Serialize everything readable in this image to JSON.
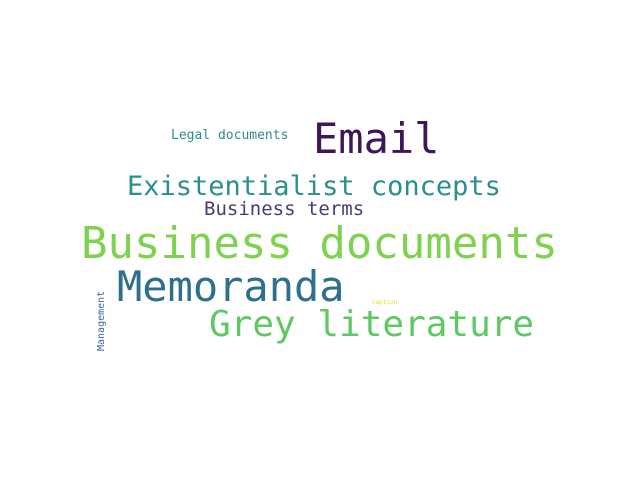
{
  "words": [
    {
      "key": "legal",
      "text": "Legal documents",
      "color": "#2f8c8a"
    },
    {
      "key": "email",
      "text": "Email",
      "color": "#3f155a"
    },
    {
      "key": "exist",
      "text": "Existentialist concepts",
      "color": "#2a8f8e"
    },
    {
      "key": "bterms",
      "text": "Business terms",
      "color": "#4a3a78"
    },
    {
      "key": "bdocs",
      "text": "Business documents",
      "color": "#7ed24f"
    },
    {
      "key": "memo",
      "text": "Memoranda",
      "color": "#2f6f8e"
    },
    {
      "key": "grey",
      "text": "Grey literature",
      "color": "#5ec962"
    },
    {
      "key": "caption",
      "text": "caption",
      "color": "#e7e419"
    },
    {
      "key": "mgmt",
      "text": "Management",
      "color": "#3b6aa0"
    }
  ]
}
